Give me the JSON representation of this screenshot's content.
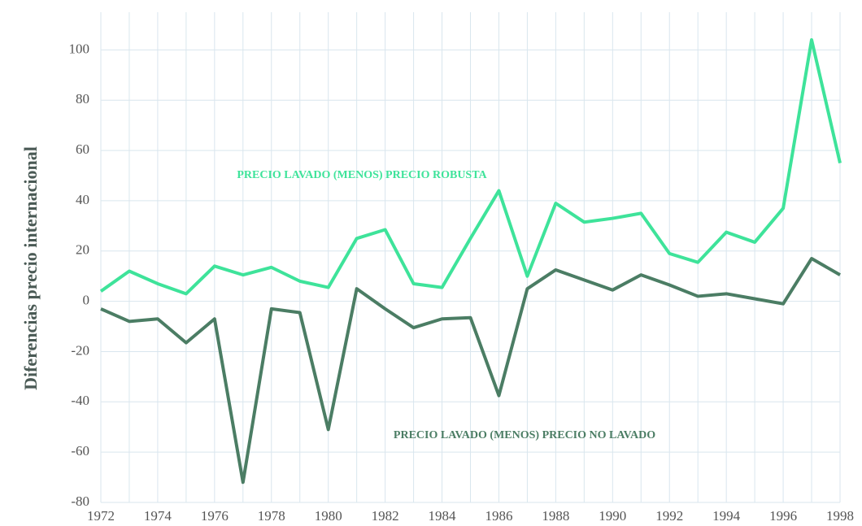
{
  "chart_data": {
    "type": "line",
    "y_label": "Diferencias precio internacional",
    "x": [
      1972,
      1973,
      1974,
      1975,
      1976,
      1977,
      1978,
      1979,
      1980,
      1981,
      1982,
      1983,
      1984,
      1985,
      1986,
      1987,
      1988,
      1989,
      1990,
      1991,
      1992,
      1993,
      1994,
      1995,
      1996,
      1997,
      1998
    ],
    "series": [
      {
        "name": "PRECIO LAVADO (MENOS) PRECIO ROBUSTA",
        "color": "#3ee39a",
        "values": [
          4,
          12,
          7,
          3,
          14,
          10.5,
          13.5,
          8,
          5.5,
          25,
          28.5,
          7,
          5.5,
          25,
          44,
          10,
          39,
          31.5,
          33,
          35,
          19,
          15.5,
          27.5,
          23.5,
          37,
          104,
          55
        ]
      },
      {
        "name": "PRECIO LAVADO (MENOS) PRECIO NO LAVADO",
        "color": "#4b7d64",
        "values": [
          -3,
          -8,
          -7,
          -16.5,
          -7,
          -72,
          -3,
          -4.5,
          -51,
          5,
          -3,
          -10.5,
          -7,
          -6.5,
          -37.5,
          5,
          12.5,
          8.5,
          4.5,
          10.5,
          6.5,
          2,
          3,
          1,
          -1,
          17,
          10.5
        ]
      }
    ],
    "xlim": [
      1972,
      1998
    ],
    "xticks": [
      1972,
      1974,
      1976,
      1978,
      1980,
      1982,
      1984,
      1986,
      1988,
      1990,
      1992,
      1994,
      1996,
      1998
    ],
    "ylim": [
      -80,
      115
    ],
    "yticks": [
      -80,
      -60,
      -40,
      -20,
      0,
      20,
      40,
      60,
      80,
      100
    ],
    "grid": true
  }
}
